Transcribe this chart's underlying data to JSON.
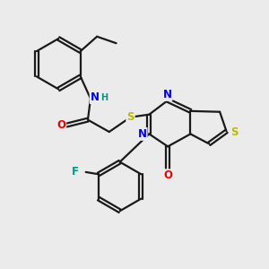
{
  "bg_color": "#ebebeb",
  "bond_color": "#1a1a1a",
  "bond_width": 1.6,
  "dbo": 0.07,
  "atom_colors": {
    "N": "#0000ee",
    "O": "#ee0000",
    "S": "#bbbb00",
    "F": "#009988",
    "H": "#009988"
  },
  "fs": 8.5,
  "xlim": [
    0,
    10
  ],
  "ylim": [
    0,
    10
  ]
}
